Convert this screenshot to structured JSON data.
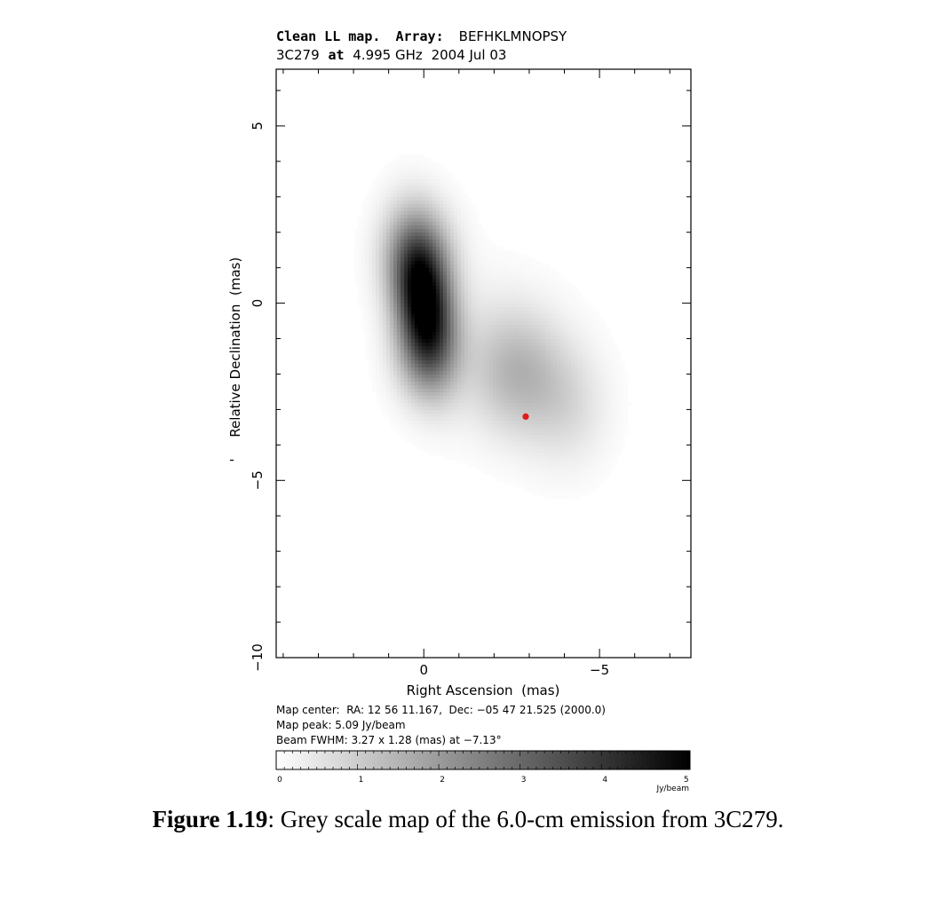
{
  "chart_data": {
    "type": "heatmap",
    "title_line1": {
      "kind": "Clean LL map.",
      "array_label": "Array:",
      "array": "BEFHKLMNOPSY"
    },
    "title_line2": {
      "source": "3C279",
      "at": "at",
      "frequency": "4.995 GHz",
      "date": "2004 Jul 03"
    },
    "xlabel": "Right Ascension  (mas)",
    "ylabel": "Relative Declination  (mas)",
    "ylabel_prefix": "'",
    "xlim": [
      4.2,
      -7.6
    ],
    "ylim": [
      -10.0,
      6.6
    ],
    "x_ticks": [
      {
        "value": 0,
        "label": "0"
      },
      {
        "value": -5,
        "label": "−5"
      }
    ],
    "y_ticks": [
      {
        "value": 5,
        "label": "5"
      },
      {
        "value": 0,
        "label": "0"
      },
      {
        "value": -5,
        "label": "−5"
      },
      {
        "value": -10,
        "label": "−10"
      }
    ],
    "x_minor_step": 1,
    "y_minor_step": 1,
    "map_center": "Map center:  RA: 12 56 11.167,  Dec: −05 47 21.525 (2000.0)",
    "map_peak": "Map peak: 5.09 Jy/beam",
    "beam_fwhm": "Beam FWHM: 3.27 x 1.28 (mas) at −7.13°",
    "colorbar": {
      "min": 0,
      "max": 5.09,
      "ticks": [
        "0",
        "1",
        "2",
        "3",
        "4",
        "5"
      ],
      "unit": "Jy/beam"
    },
    "components": [
      {
        "x": 0.0,
        "y": 0.0,
        "peak": 5.09,
        "sigma_x": 0.55,
        "sigma_y": 1.35,
        "angle_deg": -7.13
      },
      {
        "x": 0.15,
        "y": 1.4,
        "peak": 1.5,
        "sigma_x": 0.7,
        "sigma_y": 1.0,
        "angle_deg": 0
      },
      {
        "x": 0.0,
        "y": -1.5,
        "peak": 1.1,
        "sigma_x": 0.6,
        "sigma_y": 0.9,
        "angle_deg": 0
      },
      {
        "x": -2.7,
        "y": -2.0,
        "peak": 1.3,
        "sigma_x": 0.9,
        "sigma_y": 1.2,
        "angle_deg": 0
      },
      {
        "x": -4.1,
        "y": -2.9,
        "peak": 0.65,
        "sigma_x": 0.8,
        "sigma_y": 1.2,
        "angle_deg": 0
      },
      {
        "x": -1.5,
        "y": -1.2,
        "peak": 0.35,
        "sigma_x": 1.3,
        "sigma_y": 1.4,
        "angle_deg": 0
      }
    ],
    "marker": {
      "x": -2.9,
      "y": -3.2,
      "color": "#e21b1b"
    }
  },
  "caption": {
    "label": "Figure 1.19",
    "text": ":  Grey scale map of the 6.0-cm emission from 3C279."
  }
}
